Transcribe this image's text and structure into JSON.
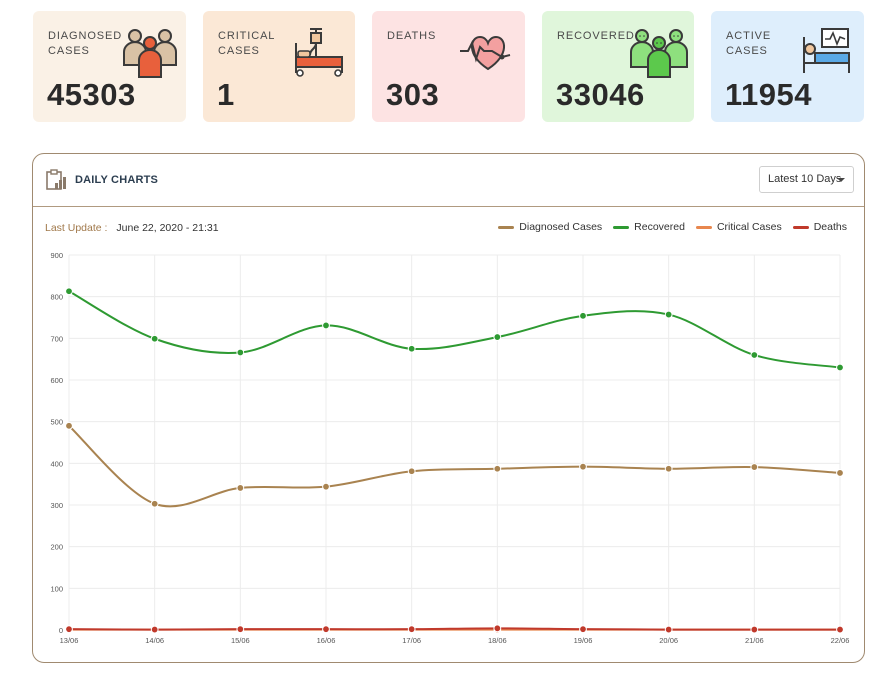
{
  "stats": [
    {
      "id": "diagnosed",
      "label": "Diagnosed Cases",
      "value": "45303",
      "bg": "#faf1e6",
      "icon": "group-icon"
    },
    {
      "id": "critical",
      "label": "Critical Cases",
      "value": "1",
      "bg": "#fbe8d6",
      "icon": "hospital-bed-icon"
    },
    {
      "id": "deaths",
      "label": "Deaths",
      "value": "303",
      "bg": "#fde3e3",
      "icon": "heartbeat-icon"
    },
    {
      "id": "recovered",
      "label": "Recovered",
      "value": "33046",
      "bg": "#e0f6db",
      "icon": "recovered-group-icon"
    },
    {
      "id": "active",
      "label": "Active Cases",
      "value": "11954",
      "bg": "#deeefc",
      "icon": "patient-monitor-icon"
    }
  ],
  "panel": {
    "title": "DAILY CHARTS",
    "range_selected": "Latest 10 Days",
    "last_update_label": "Last Update :",
    "last_update_value": "June 22, 2020 - 21:31"
  },
  "colors": {
    "diagnosed": "#a98350",
    "recovered": "#2e9a32",
    "critical": "#e8874e",
    "deaths": "#c0392b"
  },
  "chart_data": {
    "type": "line",
    "categories": [
      "13/06",
      "14/06",
      "15/06",
      "16/06",
      "17/06",
      "18/06",
      "19/06",
      "20/06",
      "21/06",
      "22/06"
    ],
    "ylim": [
      0,
      900
    ],
    "yticks": [
      0,
      100,
      200,
      300,
      400,
      500,
      600,
      700,
      800,
      900
    ],
    "grid": true,
    "legend_position": "top-right",
    "series": [
      {
        "name": "Diagnosed Cases",
        "key": "diagnosed",
        "values": [
          490,
          303,
          341,
          344,
          381,
          387,
          392,
          387,
          391,
          377
        ]
      },
      {
        "name": "Recovered",
        "key": "recovered",
        "values": [
          813,
          699,
          666,
          731,
          675,
          703,
          754,
          757,
          660,
          630
        ]
      },
      {
        "name": "Critical Cases",
        "key": "critical",
        "values": [
          1,
          1,
          1,
          1,
          1,
          1,
          1,
          1,
          1,
          1
        ]
      },
      {
        "name": "Deaths",
        "key": "deaths",
        "values": [
          2,
          1,
          2,
          2,
          2,
          4,
          2,
          1,
          1,
          1
        ]
      }
    ]
  }
}
